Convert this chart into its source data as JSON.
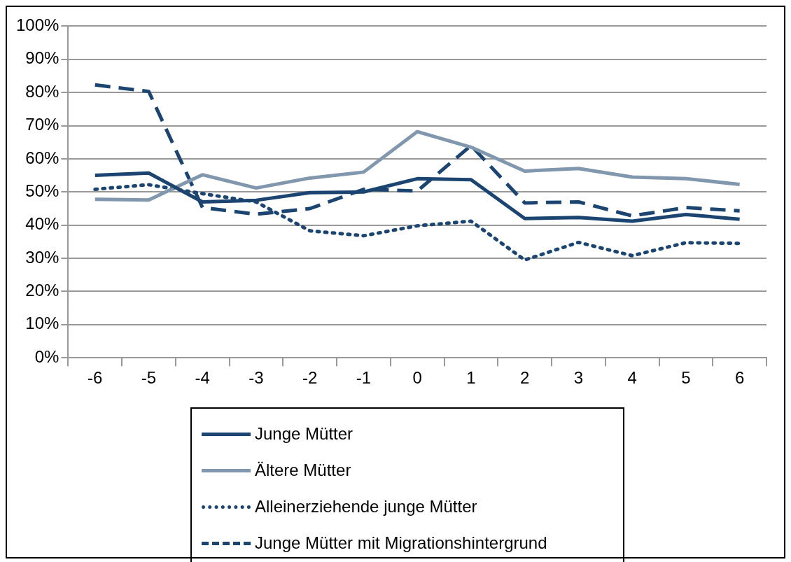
{
  "chart_data": {
    "type": "line",
    "categories": [
      "-6",
      "-5",
      "-4",
      "-3",
      "-2",
      "-1",
      "0",
      "1",
      "2",
      "3",
      "4",
      "5",
      "6"
    ],
    "series": [
      {
        "name": "Junge Mütter",
        "color": "#1b4570",
        "line_style": "solid",
        "values": [
          55,
          55.7,
          47,
          47.5,
          49.8,
          50,
          54,
          53.7,
          42,
          42.3,
          41.2,
          43.2,
          41.8
        ]
      },
      {
        "name": "Ältere Mütter",
        "color": "#8197ad",
        "line_style": "solid",
        "values": [
          47.8,
          47.6,
          55.2,
          51.2,
          54.2,
          56,
          68.2,
          63.5,
          56.3,
          57.1,
          54.5,
          54,
          52.3
        ]
      },
      {
        "name": "Alleinerziehende junge Mütter",
        "color": "#1b4570",
        "line_style": "dotted",
        "values": [
          50.8,
          52.2,
          49.5,
          47,
          38.3,
          36.8,
          39.8,
          41.2,
          29.5,
          34.8,
          30.8,
          34.7,
          34.5
        ]
      },
      {
        "name": "Junge Mütter mit Migrationshintergrund",
        "color": "#1b4570",
        "line_style": "dashed",
        "values": [
          82.3,
          80.3,
          45.3,
          43.3,
          45,
          50.8,
          50.3,
          64,
          46.7,
          47,
          42.8,
          45.3,
          44.3
        ]
      }
    ],
    "ylim": [
      0,
      100
    ],
    "yticks": [
      {
        "value": 0,
        "label": "0%"
      },
      {
        "value": 10,
        "label": "10%"
      },
      {
        "value": 20,
        "label": "20%"
      },
      {
        "value": 30,
        "label": "30%"
      },
      {
        "value": 40,
        "label": "40%"
      },
      {
        "value": 50,
        "label": "50%"
      },
      {
        "value": 60,
        "label": "60%"
      },
      {
        "value": 70,
        "label": "70%"
      },
      {
        "value": 80,
        "label": "80%"
      },
      {
        "value": 90,
        "label": "90%"
      },
      {
        "value": 100,
        "label": "100%"
      }
    ],
    "grid": "y",
    "legend": "bottom",
    "marker": "none"
  }
}
